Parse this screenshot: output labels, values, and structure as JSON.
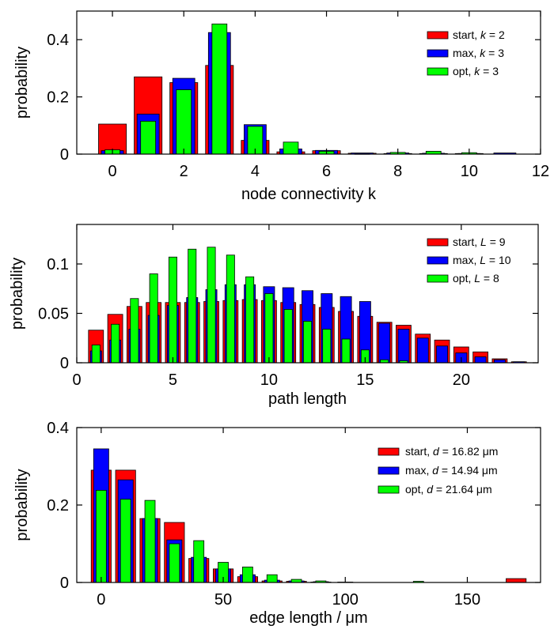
{
  "chart_data": [
    {
      "type": "bar",
      "xlabel": "node connectivity k",
      "ylabel": "probability",
      "xlim": [
        -1,
        12
      ],
      "ylim": [
        0,
        0.5
      ],
      "xticks": [
        "0",
        "2",
        "4",
        "6",
        "8",
        "10",
        "12"
      ],
      "yticks": [
        "0",
        "0.2",
        "0.4"
      ],
      "legend_position": "top-right",
      "series": [
        {
          "name": "start",
          "legend_var": "k",
          "legend_value": "2",
          "color": "#ff0000",
          "x": [
            0,
            1,
            2,
            3,
            4,
            5,
            6,
            7,
            8,
            9,
            10,
            11
          ],
          "values": [
            0.105,
            0.27,
            0.25,
            0.31,
            0.048,
            0.008,
            0.012,
            0.003,
            0.002,
            0.002,
            0.002,
            0.0
          ]
        },
        {
          "name": "max",
          "legend_var": "k",
          "legend_value": "3",
          "color": "#0000ff",
          "x": [
            0,
            1,
            2,
            3,
            4,
            5,
            6,
            7,
            8,
            9,
            10,
            11
          ],
          "values": [
            0.012,
            0.14,
            0.265,
            0.425,
            0.103,
            0.018,
            0.013,
            0.004,
            0.004,
            0.003,
            0.002,
            0.004
          ]
        },
        {
          "name": "opt",
          "legend_var": "k",
          "legend_value": "3",
          "color": "#00ff00",
          "x": [
            0,
            1,
            2,
            3,
            4,
            5,
            6,
            7,
            8,
            9,
            10,
            11
          ],
          "values": [
            0.015,
            0.115,
            0.225,
            0.455,
            0.097,
            0.042,
            0.01,
            0.001,
            0.006,
            0.01,
            0.005,
            0.0
          ]
        }
      ]
    },
    {
      "type": "bar",
      "xlabel": "path length",
      "ylabel": "probability",
      "xlim": [
        0,
        24
      ],
      "ylim": [
        0,
        0.14
      ],
      "xticks": [
        "0",
        "5",
        "10",
        "15",
        "20"
      ],
      "yticks": [
        "0",
        "0.05",
        "0.1"
      ],
      "legend_position": "top-right",
      "series": [
        {
          "name": "start",
          "legend_var": "L",
          "legend_value": "9",
          "color": "#ff0000",
          "x": [
            1,
            2,
            3,
            4,
            5,
            6,
            7,
            8,
            9,
            10,
            11,
            12,
            13,
            14,
            15,
            16,
            17,
            18,
            19,
            20,
            21,
            22,
            23
          ],
          "values": [
            0.033,
            0.049,
            0.057,
            0.061,
            0.061,
            0.061,
            0.062,
            0.063,
            0.064,
            0.063,
            0.061,
            0.059,
            0.056,
            0.052,
            0.047,
            0.041,
            0.038,
            0.029,
            0.023,
            0.016,
            0.011,
            0.004,
            0.001
          ]
        },
        {
          "name": "max",
          "legend_var": "L",
          "legend_value": "10",
          "color": "#0000ff",
          "x": [
            1,
            2,
            3,
            4,
            5,
            6,
            7,
            8,
            9,
            10,
            11,
            12,
            13,
            14,
            15,
            16,
            17,
            18,
            19,
            20,
            21,
            22,
            23
          ],
          "values": [
            0.012,
            0.023,
            0.034,
            0.048,
            0.058,
            0.066,
            0.074,
            0.079,
            0.079,
            0.077,
            0.076,
            0.073,
            0.07,
            0.067,
            0.062,
            0.04,
            0.034,
            0.025,
            0.017,
            0.01,
            0.006,
            0.003,
            0.001
          ]
        },
        {
          "name": "opt",
          "legend_var": "L",
          "legend_value": "8",
          "color": "#00ff00",
          "x": [
            1,
            2,
            3,
            4,
            5,
            6,
            7,
            8,
            9,
            10,
            11,
            12,
            13,
            14,
            15,
            16,
            17,
            18,
            19,
            20,
            21,
            22,
            23
          ],
          "values": [
            0.018,
            0.039,
            0.065,
            0.09,
            0.107,
            0.115,
            0.117,
            0.109,
            0.087,
            0.07,
            0.054,
            0.042,
            0.034,
            0.024,
            0.013,
            0.003,
            0.002,
            0.0,
            0.0,
            0.0,
            0.0,
            0.0,
            0.0
          ]
        }
      ]
    },
    {
      "type": "bar",
      "xlabel": "edge length / μm",
      "ylabel": "probability",
      "xlim": [
        -10,
        180
      ],
      "ylim": [
        0,
        0.4
      ],
      "xticks": [
        "0",
        "50",
        "100",
        "150"
      ],
      "yticks": [
        "0",
        "0.2",
        "0.4"
      ],
      "legend_position": "top-right",
      "series": [
        {
          "name": "start",
          "legend_var": "d",
          "legend_value": "16.82 μm",
          "color": "#ff0000",
          "x": [
            0,
            10,
            20,
            30,
            40,
            50,
            60,
            70,
            80,
            90,
            100,
            110,
            120,
            130,
            140,
            150,
            160,
            170
          ],
          "values": [
            0.29,
            0.29,
            0.165,
            0.155,
            0.062,
            0.035,
            0.015,
            0.004,
            0.003,
            0.001,
            0.0,
            0.0,
            0.0,
            0.0,
            0.0,
            0.0,
            0.0,
            0.01
          ]
        },
        {
          "name": "max",
          "legend_var": "d",
          "legend_value": "14.94 μm",
          "color": "#0000ff",
          "x": [
            0,
            10,
            20,
            30,
            40,
            50,
            60,
            70,
            80,
            90,
            100,
            110,
            120,
            130,
            140,
            150,
            160,
            170
          ],
          "values": [
            0.345,
            0.265,
            0.165,
            0.11,
            0.065,
            0.035,
            0.02,
            0.006,
            0.004,
            0.002,
            0.001,
            0.0,
            0.0,
            0.0,
            0.0,
            0.0,
            0.0,
            0.0
          ]
        },
        {
          "name": "opt",
          "legend_var": "d",
          "legend_value": "21.64 μm",
          "color": "#00ff00",
          "x": [
            0,
            10,
            20,
            30,
            40,
            50,
            60,
            70,
            80,
            90,
            100,
            110,
            120,
            130,
            140,
            150,
            160,
            170
          ],
          "values": [
            0.238,
            0.215,
            0.212,
            0.1,
            0.108,
            0.052,
            0.04,
            0.02,
            0.008,
            0.004,
            0.0,
            0.0,
            0.0,
            0.003,
            0.0,
            0.0,
            0.0,
            0.0
          ]
        }
      ]
    }
  ]
}
